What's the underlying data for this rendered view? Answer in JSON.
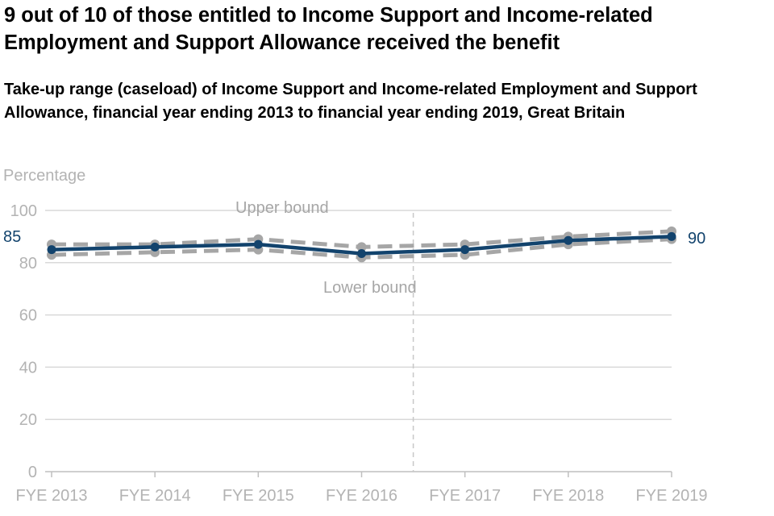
{
  "title": "9 out of 10 of those entitled to Income Support and Income-related Employment and Support Allowance received the benefit",
  "subtitle": "Take-up range (caseload) of Income Support and Income-related Employment and Support Allowance, financial year ending 2013 to financial year ending 2019, Great Britain",
  "colors": {
    "central": "#12436d",
    "bounds": "#a6a6a6",
    "grid": "#d9d9d9",
    "axis_text": "#b3b3b3"
  },
  "chart_data": {
    "type": "line",
    "ylabel": "Percentage",
    "xlabel": "",
    "categories": [
      "FYE 2013",
      "FYE 2014",
      "FYE 2015",
      "FYE 2016",
      "FYE 2017",
      "FYE 2018",
      "FYE 2019"
    ],
    "ylim": [
      0,
      100
    ],
    "yticks": [
      0,
      20,
      40,
      60,
      80,
      100
    ],
    "grid": true,
    "series": [
      {
        "key": "upper",
        "values": [
          87,
          87,
          89,
          86,
          87,
          90,
          92
        ]
      },
      {
        "key": "lower",
        "values": [
          83,
          84,
          85,
          82,
          83,
          87,
          89
        ]
      },
      {
        "key": "central",
        "values": [
          85,
          86,
          87,
          83.5,
          85,
          88.5,
          90
        ]
      }
    ],
    "annotations": {
      "upper_bound": "Upper bound",
      "lower_bound": "Lower bound",
      "start_value": "85",
      "end_value": "90"
    },
    "series_break_after": "FYE 2016"
  }
}
